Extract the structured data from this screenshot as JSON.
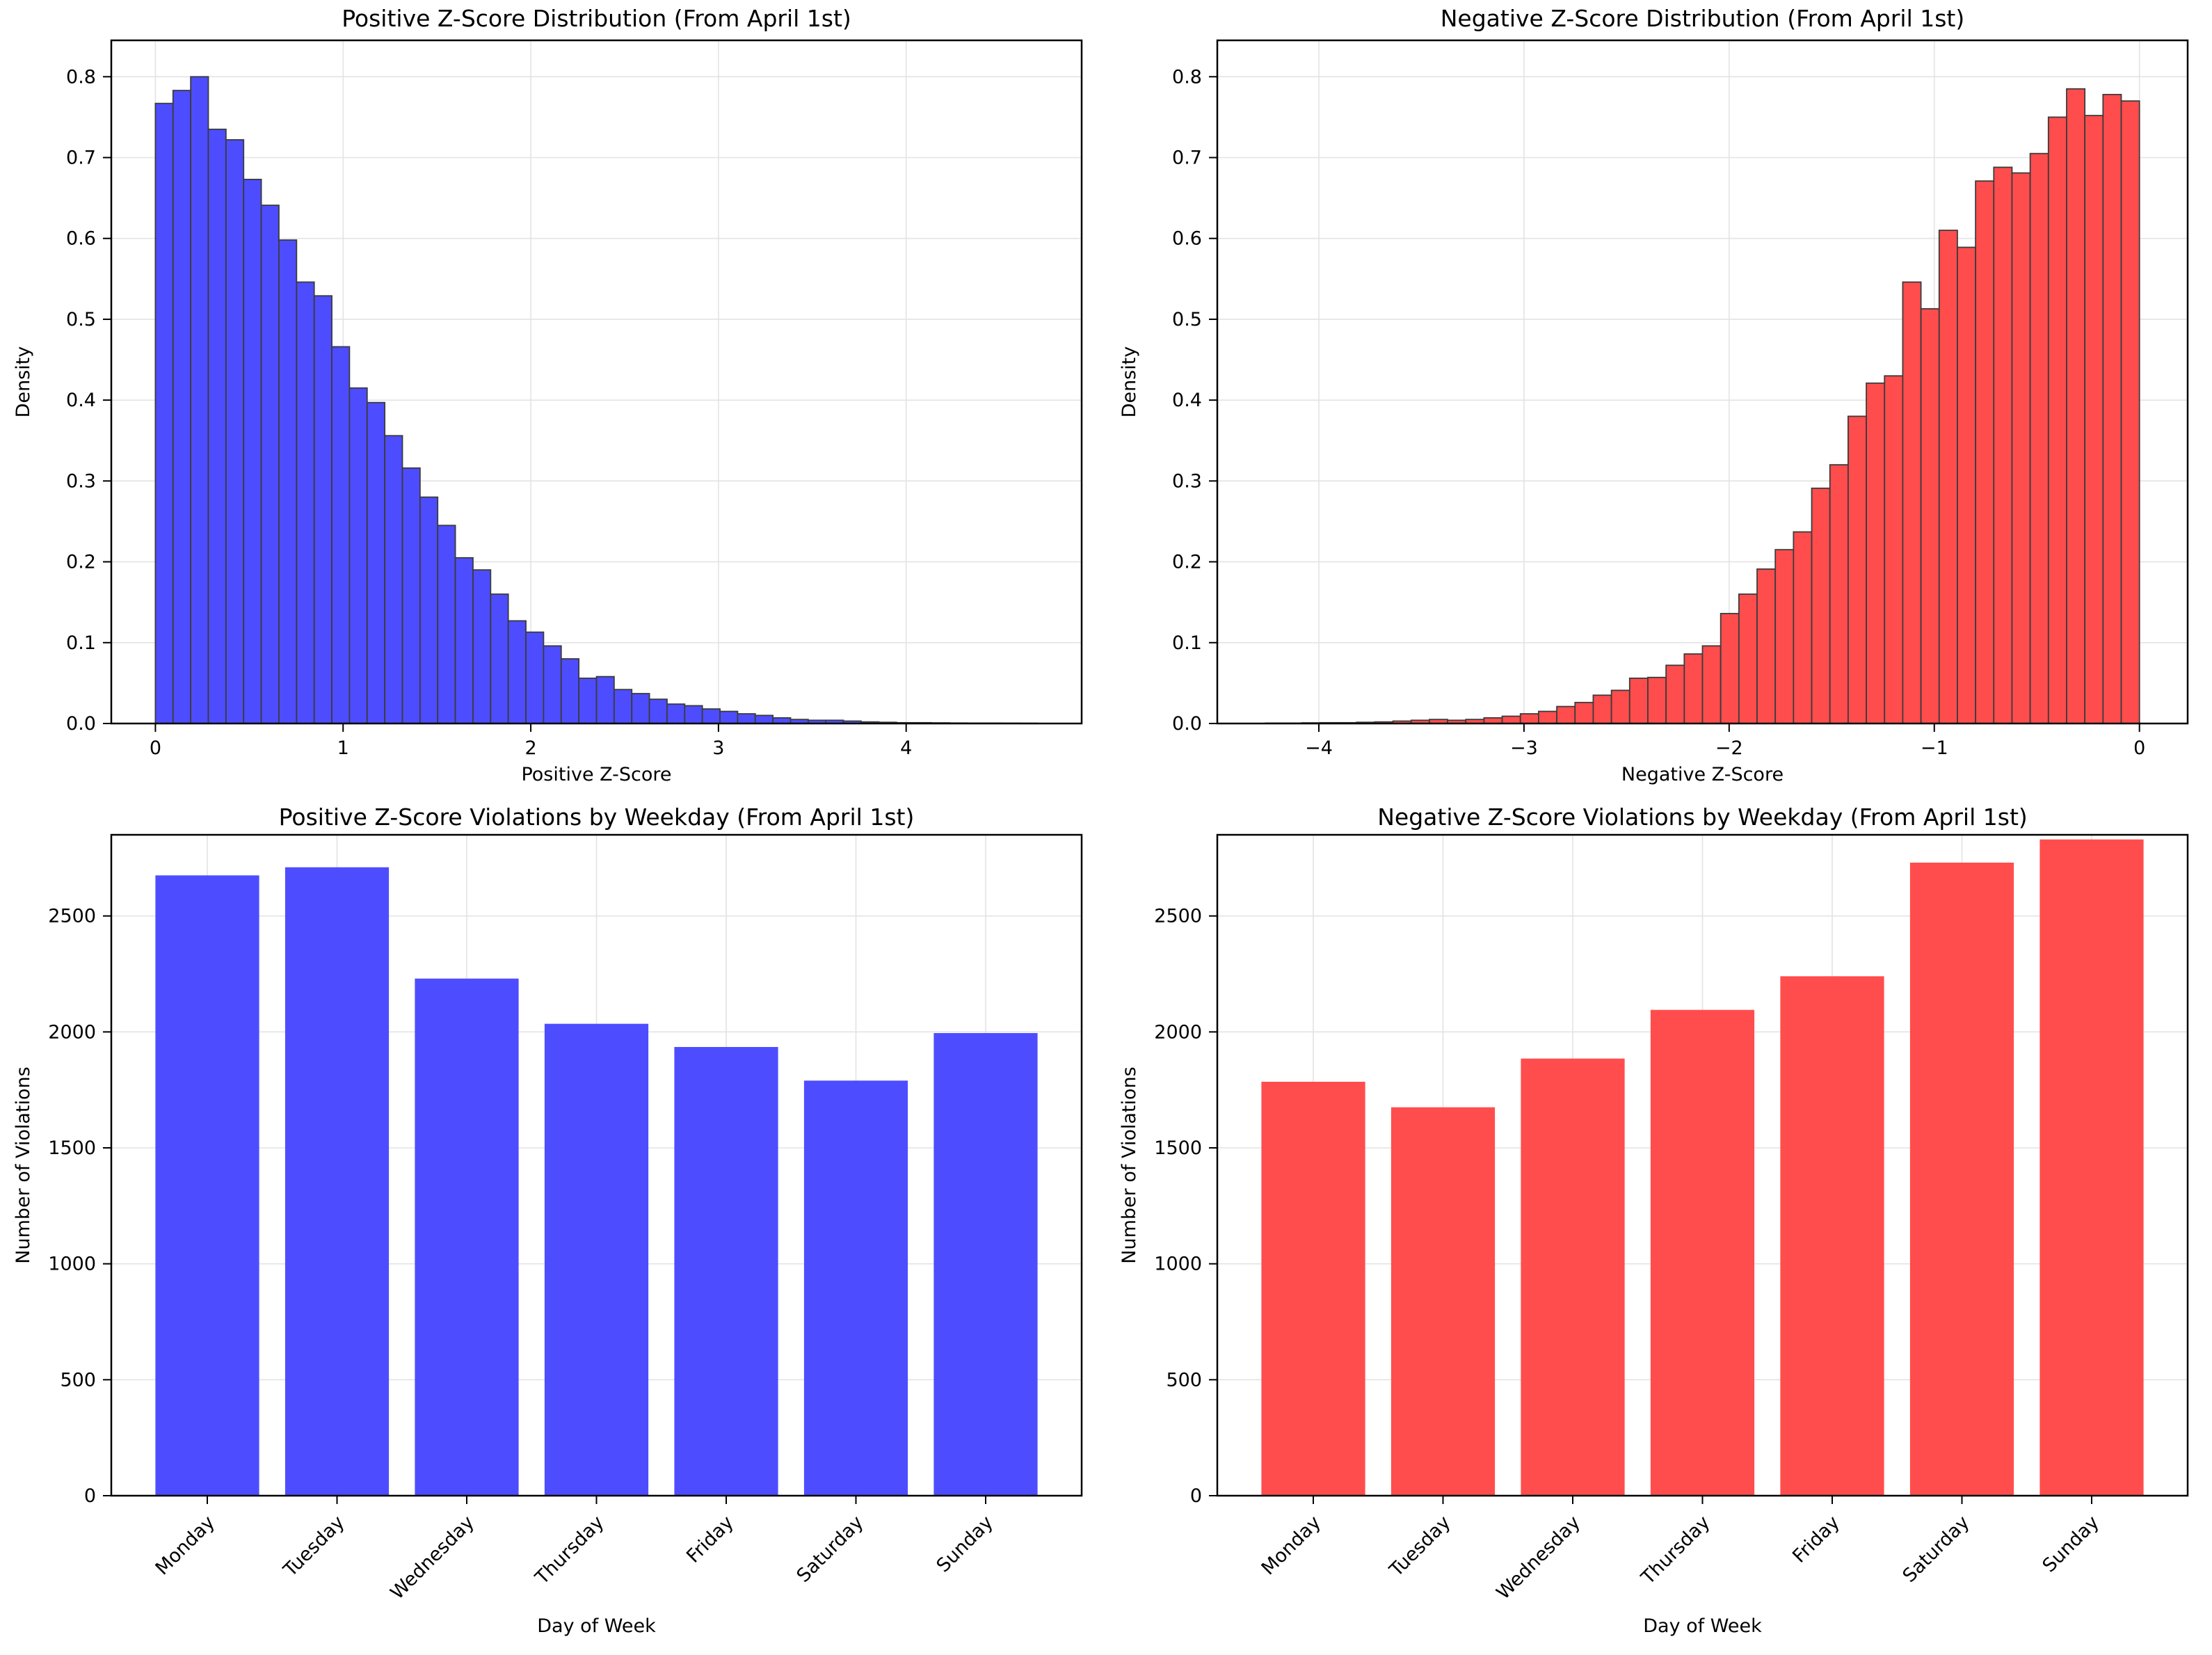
{
  "figure": {
    "background": "#ffffff",
    "grid_color": "#e3e3e3",
    "spine_color": "#000000"
  },
  "chart_data": [
    {
      "type": "histogram",
      "title": "Positive Z-Score Distribution (From April 1st)",
      "xlabel": "Positive Z-Score",
      "ylabel": "Density",
      "bar_color": "#4d4dff",
      "edge_color": "#3b3b3b",
      "grid": true,
      "bin_start": 0,
      "bin_width": 0.094,
      "densities": [
        0.767,
        0.783,
        0.8,
        0.735,
        0.722,
        0.673,
        0.641,
        0.598,
        0.546,
        0.529,
        0.466,
        0.415,
        0.397,
        0.356,
        0.316,
        0.28,
        0.245,
        0.205,
        0.19,
        0.16,
        0.127,
        0.113,
        0.096,
        0.08,
        0.056,
        0.058,
        0.042,
        0.037,
        0.03,
        0.024,
        0.022,
        0.018,
        0.015,
        0.012,
        0.01,
        0.007,
        0.005,
        0.004,
        0.004,
        0.003,
        0.002,
        0.0015,
        0.001,
        0.001,
        0.0008,
        0.0006,
        0.0005,
        0.0005,
        0.0004,
        0.0003
      ],
      "xticks": [
        0,
        1,
        2,
        3,
        4
      ],
      "xtick_labels": [
        "0",
        "1",
        "2",
        "3",
        "4"
      ],
      "yticks": [
        0.0,
        0.1,
        0.2,
        0.3,
        0.4,
        0.5,
        0.6,
        0.7,
        0.8
      ],
      "ytick_labels": [
        "0.0",
        "0.1",
        "0.2",
        "0.3",
        "0.4",
        "0.5",
        "0.6",
        "0.7",
        "0.8"
      ],
      "xlim": [
        -0.235,
        4.935
      ],
      "ylim": [
        0,
        0.845
      ]
    },
    {
      "type": "histogram",
      "title": "Negative Z-Score Distribution (From April 1st)",
      "xlabel": "Negative Z-Score",
      "ylabel": "Density",
      "bar_color": "#ff4d4d",
      "edge_color": "#3b3b3b",
      "grid": true,
      "bin_start": -4.26,
      "bin_width": 0.08875,
      "densities": [
        0.0005,
        0.0005,
        0.0008,
        0.001,
        0.001,
        0.0015,
        0.002,
        0.003,
        0.004,
        0.005,
        0.004,
        0.005,
        0.007,
        0.009,
        0.012,
        0.015,
        0.021,
        0.026,
        0.035,
        0.041,
        0.056,
        0.057,
        0.072,
        0.086,
        0.096,
        0.136,
        0.16,
        0.191,
        0.215,
        0.237,
        0.291,
        0.32,
        0.38,
        0.421,
        0.43,
        0.546,
        0.513,
        0.61,
        0.589,
        0.671,
        0.688,
        0.681,
        0.705,
        0.75,
        0.785,
        0.752,
        0.778,
        0.77
      ],
      "xticks": [
        -4,
        -3,
        -2,
        -1,
        0
      ],
      "xtick_labels": [
        "−4",
        "−3",
        "−2",
        "−1",
        "0"
      ],
      "yticks": [
        0.0,
        0.1,
        0.2,
        0.3,
        0.4,
        0.5,
        0.6,
        0.7,
        0.8
      ],
      "ytick_labels": [
        "0.0",
        "0.1",
        "0.2",
        "0.3",
        "0.4",
        "0.5",
        "0.6",
        "0.7",
        "0.8"
      ],
      "xlim": [
        -4.495,
        0.235
      ],
      "ylim": [
        0,
        0.845
      ]
    },
    {
      "type": "bar",
      "title": "Positive Z-Score Violations by Weekday (From April 1st)",
      "xlabel": "Day of Week",
      "ylabel": "Number of Violations",
      "bar_color": "#4d4dff",
      "grid": true,
      "categories": [
        "Monday",
        "Tuesday",
        "Wednesday",
        "Thursday",
        "Friday",
        "Saturday",
        "Sunday"
      ],
      "values": [
        2675,
        2710,
        2230,
        2035,
        1935,
        1790,
        1995
      ],
      "yticks": [
        0,
        500,
        1000,
        1500,
        2000,
        2500
      ],
      "ytick_labels": [
        "0",
        "500",
        "1000",
        "1500",
        "2000",
        "2500"
      ],
      "xlim": [
        -0.74,
        6.74
      ],
      "ylim": [
        0,
        2850
      ],
      "bar_half_width": 0.4
    },
    {
      "type": "bar",
      "title": "Negative Z-Score Violations by Weekday (From April 1st)",
      "xlabel": "Day of Week",
      "ylabel": "Number of Violations",
      "bar_color": "#ff4d4d",
      "grid": true,
      "categories": [
        "Monday",
        "Tuesday",
        "Wednesday",
        "Thursday",
        "Friday",
        "Saturday",
        "Sunday"
      ],
      "values": [
        1785,
        1675,
        1885,
        2095,
        2240,
        2730,
        2830
      ],
      "yticks": [
        0,
        500,
        1000,
        1500,
        2000,
        2500
      ],
      "ytick_labels": [
        "0",
        "500",
        "1000",
        "1500",
        "2000",
        "2500"
      ],
      "xlim": [
        -0.74,
        6.74
      ],
      "ylim": [
        0,
        2850
      ],
      "bar_half_width": 0.4
    }
  ]
}
